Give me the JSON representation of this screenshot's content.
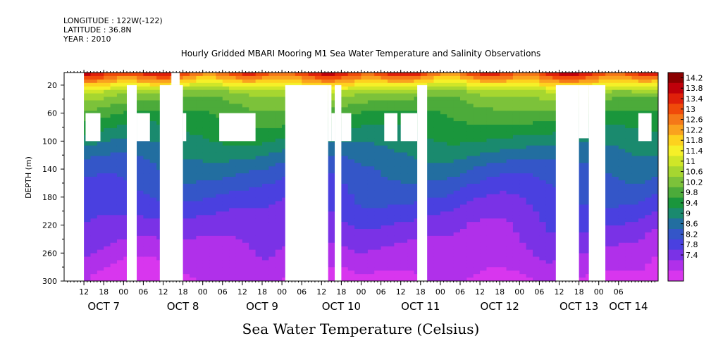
{
  "header": {
    "longitude": "LONGITUDE : 122W(-122)",
    "latitude": "LATITUDE : 36.8N",
    "year": "YEAR : 2010"
  },
  "chart_data": {
    "type": "heatmap",
    "title": "Hourly Gridded MBARI Mooring M1 Sea Water Temperature and Salinity Observations",
    "xlabel": "Sea Water Temperature (Celsius)",
    "ylabel": "DEPTH (m)",
    "y_ticks": [
      20,
      60,
      100,
      140,
      180,
      220,
      260,
      300
    ],
    "y_range": [
      300,
      2
    ],
    "x_range_hours": [
      0,
      180
    ],
    "x_hour_labels": [
      "12",
      "18",
      "00",
      "06",
      "12",
      "18",
      "00",
      "06",
      "12",
      "18",
      "00",
      "06",
      "12",
      "18",
      "00",
      "06",
      "12",
      "18",
      "00",
      "06",
      "12",
      "18",
      "00",
      "06",
      "12",
      "18",
      "00",
      "06"
    ],
    "x_day_labels": [
      "OCT  7",
      "OCT  8",
      "OCT  9",
      "OCT 10",
      "OCT 11",
      "OCT 12",
      "OCT 13",
      "OCT 14"
    ],
    "colorbar_labels": [
      "14.2",
      "13.8",
      "13.4",
      "13",
      "12.6",
      "12.2",
      "11.8",
      "11.4",
      "11",
      "10.6",
      "10.2",
      "9.8",
      "9.4",
      "9",
      "8.6",
      "8.2",
      "7.8",
      "7.4"
    ],
    "colorbar_colors": [
      "#8b0000",
      "#c0000a",
      "#e0200a",
      "#f04a0a",
      "#f57818",
      "#faa21e",
      "#fdd21e",
      "#f5f028",
      "#cfe628",
      "#a6d630",
      "#7cc23a",
      "#4cab3a",
      "#1a963c",
      "#1a8a6e",
      "#226ea0",
      "#3456c8",
      "#4a40e0",
      "#7a32e6",
      "#b030ea",
      "#d836ee"
    ],
    "value_range": [
      7.4,
      14.6
    ],
    "profile_depths": [
      2,
      10,
      20,
      30,
      40,
      60,
      80,
      100,
      120,
      140,
      160,
      180,
      200,
      220,
      240,
      260,
      280,
      300
    ],
    "profile_temps": [
      13.6,
      12.8,
      11.9,
      11.1,
      10.8,
      10.4,
      10.1,
      9.8,
      9.5,
      9.2,
      9.0,
      8.8,
      8.6,
      8.4,
      8.25,
      8.1,
      7.95,
      7.8
    ],
    "missing_regions": [
      {
        "x0": 0,
        "x1": 6,
        "y0": 2,
        "y1": 300
      },
      {
        "x0": 6.5,
        "x1": 11,
        "y0": 60,
        "y1": 100
      },
      {
        "x0": 19,
        "x1": 22,
        "y0": 20,
        "y1": 300
      },
      {
        "x0": 22,
        "x1": 26,
        "y0": 60,
        "y1": 100
      },
      {
        "x0": 29,
        "x1": 36,
        "y0": 20,
        "y1": 300
      },
      {
        "x0": 32.5,
        "x1": 35,
        "y0": 2,
        "y1": 20
      },
      {
        "x0": 36,
        "x1": 37,
        "y0": 60,
        "y1": 100
      },
      {
        "x0": 47,
        "x1": 58,
        "y0": 60,
        "y1": 100
      },
      {
        "x0": 67,
        "x1": 80,
        "y0": 20,
        "y1": 300
      },
      {
        "x0": 80,
        "x1": 81,
        "y0": 20,
        "y1": 100
      },
      {
        "x0": 81,
        "x1": 82,
        "y0": 60,
        "y1": 100
      },
      {
        "x0": 82,
        "x1": 84,
        "y0": 20,
        "y1": 300
      },
      {
        "x0": 84,
        "x1": 87,
        "y0": 60,
        "y1": 100
      },
      {
        "x0": 97,
        "x1": 101,
        "y0": 60,
        "y1": 100
      },
      {
        "x0": 102,
        "x1": 107,
        "y0": 60,
        "y1": 100
      },
      {
        "x0": 107,
        "x1": 110,
        "y0": 20,
        "y1": 300
      },
      {
        "x0": 149,
        "x1": 156,
        "y0": 20,
        "y1": 300
      },
      {
        "x0": 156,
        "x1": 159,
        "y0": 20,
        "y1": 96
      },
      {
        "x0": 159,
        "x1": 164,
        "y0": 20,
        "y1": 300
      },
      {
        "x0": 174,
        "x1": 178,
        "y0": 60,
        "y1": 100
      }
    ]
  }
}
